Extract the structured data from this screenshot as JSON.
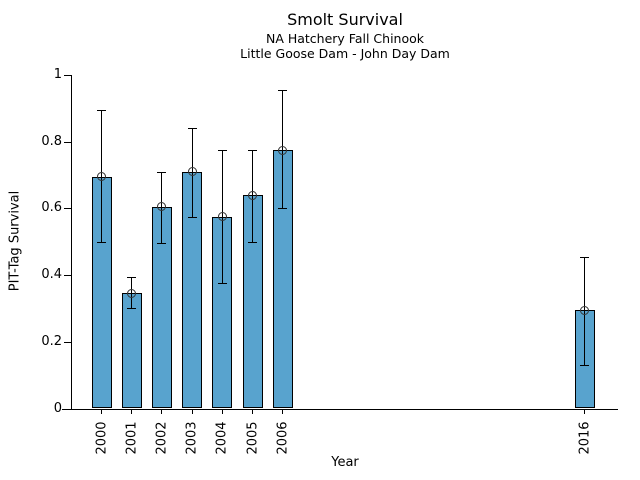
{
  "header": {
    "title": "Smolt Survival",
    "subtitle1": "NA Hatchery Fall Chinook",
    "subtitle2": "Little Goose Dam - John Day Dam"
  },
  "chart_data": {
    "type": "bar",
    "title": "Smolt Survival",
    "subtitles": [
      "NA Hatchery Fall Chinook",
      "Little Goose Dam - John Day Dam"
    ],
    "xlabel": "Year",
    "ylabel": "PIT-Tag Survival",
    "ylim": [
      0,
      1
    ],
    "yticks": [
      "0",
      "0.2",
      "0.4",
      "0.6",
      "0.8",
      "1"
    ],
    "ytick_values": [
      0,
      0.2,
      0.4,
      0.6,
      0.8,
      1
    ],
    "categories": [
      "2000",
      "2001",
      "2002",
      "2003",
      "2004",
      "2005",
      "2006",
      "2016"
    ],
    "values": [
      0.695,
      0.345,
      0.605,
      0.71,
      0.575,
      0.64,
      0.775,
      0.295
    ],
    "error_low": [
      0.5,
      0.3,
      0.495,
      0.575,
      0.375,
      0.5,
      0.6,
      0.13
    ],
    "error_high": [
      0.895,
      0.395,
      0.71,
      0.84,
      0.775,
      0.775,
      0.955,
      0.455
    ],
    "bar_color": "#58A3CE",
    "bar_edge_color": "#000000",
    "marker": "open-circle",
    "grid": false
  }
}
